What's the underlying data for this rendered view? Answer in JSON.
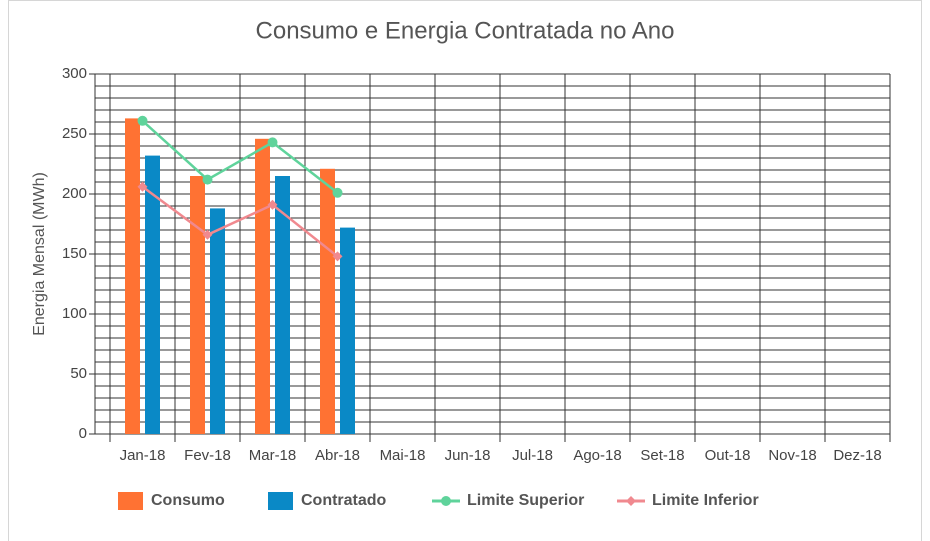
{
  "chart_data": {
    "type": "bar_line",
    "title": "Consumo e Energia Contratada no Ano",
    "y_label": "Energia Mensal (MWh)",
    "categories": [
      "Jan-18",
      "Fev-18",
      "Mar-18",
      "Abr-18",
      "Mai-18",
      "Jun-18",
      "Jul-18",
      "Ago-18",
      "Set-18",
      "Out-18",
      "Nov-18",
      "Dez-18"
    ],
    "series": [
      {
        "name": "Consumo",
        "type": "bar",
        "color": "#ff7233",
        "values": [
          263,
          215,
          246,
          221,
          null,
          null,
          null,
          null,
          null,
          null,
          null,
          null
        ]
      },
      {
        "name": "Contratado",
        "type": "bar",
        "color": "#0a89c6",
        "values": [
          232,
          188,
          215,
          172,
          null,
          null,
          null,
          null,
          null,
          null,
          null,
          null
        ]
      },
      {
        "name": "Limite Superior",
        "type": "line",
        "marker": "circle",
        "color": "#5fd39b",
        "values": [
          261,
          212,
          243,
          201,
          null,
          null,
          null,
          null,
          null,
          null,
          null,
          null
        ]
      },
      {
        "name": "Limite Inferior",
        "type": "line",
        "marker": "diamond",
        "color": "#f0898f",
        "values": [
          206,
          166,
          191,
          148,
          null,
          null,
          null,
          null,
          null,
          null,
          null,
          null
        ]
      }
    ],
    "ylim": [
      0,
      300
    ],
    "yticks": [
      0,
      50,
      100,
      150,
      200,
      250,
      300
    ],
    "grid": true,
    "minor_grid_divisions": 5,
    "legend": "bottom"
  }
}
